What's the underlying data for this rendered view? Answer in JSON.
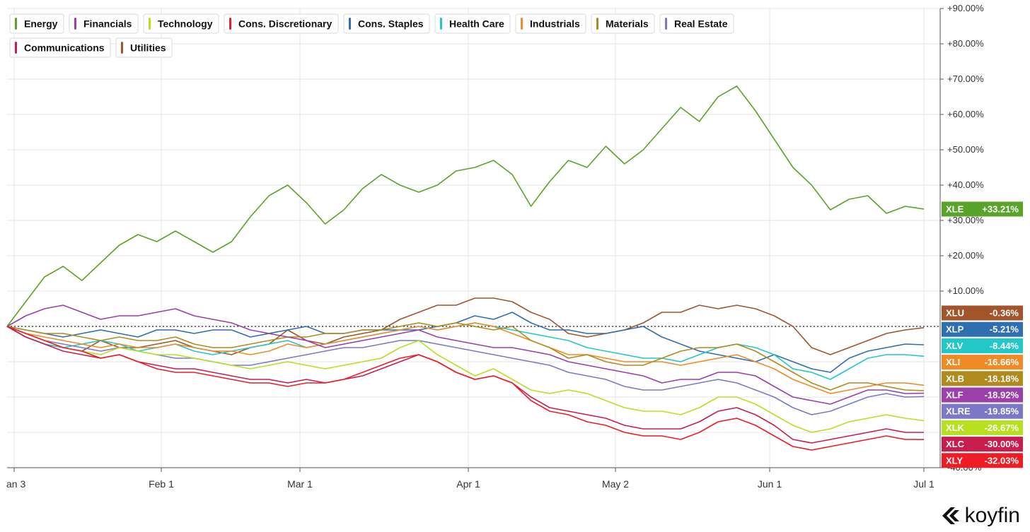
{
  "brand": {
    "name": "koyfin",
    "icon": "koyfin-logo-icon"
  },
  "colors": {
    "grid": "#e6e6e6",
    "axis": "#555555",
    "zeroline": "#222222"
  },
  "chart_data": {
    "type": "line",
    "x_labels": [
      "an 3",
      "Feb 1",
      "Mar 1",
      "Apr 1",
      "May 2",
      "Jun 1",
      "Jul 1"
    ],
    "y_unit": "%",
    "ylim": [
      -40,
      90
    ],
    "y_ticks": [
      "+90.00%",
      "+80.00%",
      "+70.00%",
      "+60.00%",
      "+50.00%",
      "+40.00%",
      "+30.00%",
      "+20.00%",
      "+10.00%",
      "-40.00%"
    ],
    "grid": true,
    "legend_position": "top-left",
    "series": [
      {
        "name": "Energy",
        "ticker": "XLE",
        "final": "+33.21%",
        "color": "#5aa329",
        "values": [
          0,
          7,
          14,
          17,
          13,
          18,
          23,
          26,
          24,
          27,
          24,
          21,
          24,
          31,
          37,
          40,
          35,
          29,
          33,
          39,
          43,
          40,
          38,
          40,
          44,
          45,
          47,
          43,
          34,
          41,
          47,
          45,
          51,
          46,
          50,
          56,
          62,
          58,
          65,
          68,
          61,
          53,
          45,
          40,
          33,
          36,
          37,
          32,
          34,
          33.21
        ]
      },
      {
        "name": "Utilities",
        "ticker": "XLU",
        "final": "-0.36%",
        "color": "#a2552a",
        "values": [
          0,
          -3,
          -5,
          -6,
          -7,
          -4,
          -6,
          -6,
          -5,
          -4,
          -6,
          -7,
          -8,
          -6,
          -5,
          -1,
          -4,
          -5,
          -3,
          -2,
          -1,
          2,
          4,
          6,
          6,
          8,
          8,
          7,
          4,
          2,
          -2,
          -3,
          -2,
          -1,
          1,
          4,
          4,
          6,
          5,
          6,
          5,
          3,
          0,
          -6,
          -8,
          -6,
          -4,
          -2,
          -1,
          -0.36
        ]
      },
      {
        "name": "Cons. Staples",
        "ticker": "XLP",
        "final": "-5.21%",
        "color": "#2f6fb0",
        "values": [
          0,
          -1,
          -2,
          -3,
          -2,
          -1,
          -2,
          -3,
          -1,
          -1,
          -2,
          -1,
          -1,
          -3,
          -2,
          -1,
          0,
          -2,
          -2,
          -1,
          -1,
          -1,
          -1,
          0,
          1,
          3,
          2,
          4,
          1,
          -1,
          -1,
          -2,
          -2,
          -1,
          0,
          -3,
          -5,
          -7,
          -8,
          -9,
          -10,
          -8,
          -10,
          -12,
          -13,
          -9,
          -7,
          -6,
          -5,
          -5.21
        ]
      },
      {
        "name": "Health Care",
        "ticker": "XLV",
        "final": "-8.44%",
        "color": "#22c7c7",
        "values": [
          0,
          -3,
          -5,
          -6,
          -5,
          -4,
          -5,
          -7,
          -6,
          -5,
          -7,
          -8,
          -7,
          -6,
          -5,
          -4,
          -6,
          -5,
          -4,
          -3,
          -2,
          -1,
          0,
          -1,
          0,
          1,
          0,
          -1,
          -2,
          -3,
          -4,
          -6,
          -7,
          -8,
          -9,
          -9,
          -10,
          -8,
          -6,
          -5,
          -6,
          -8,
          -12,
          -13,
          -15,
          -12,
          -9,
          -8,
          -8,
          -8.44
        ]
      },
      {
        "name": "Industrials",
        "ticker": "XLI",
        "final": "-16.66%",
        "color": "#f08a24",
        "values": [
          0,
          -2,
          -3,
          -4,
          -5,
          -6,
          -5,
          -6,
          -6,
          -5,
          -6,
          -7,
          -7,
          -8,
          -7,
          -5,
          -6,
          -5,
          -4,
          -3,
          -2,
          -1,
          0,
          -1,
          0,
          1,
          0,
          -2,
          -4,
          -6,
          -8,
          -8,
          -9,
          -10,
          -10,
          -10,
          -11,
          -10,
          -9,
          -8,
          -10,
          -12,
          -15,
          -17,
          -19,
          -18,
          -17,
          -16,
          -16,
          -16.66
        ]
      },
      {
        "name": "Materials",
        "ticker": "XLB",
        "final": "-18.18%",
        "color": "#b08a1d",
        "values": [
          0,
          -1,
          -2,
          -2,
          -3,
          -4,
          -3,
          -4,
          -4,
          -3,
          -5,
          -6,
          -6,
          -5,
          -4,
          -3,
          -3,
          -2,
          -2,
          -1,
          -1,
          0,
          1,
          0,
          1,
          0,
          -1,
          0,
          -4,
          -6,
          -9,
          -8,
          -10,
          -11,
          -11,
          -9,
          -7,
          -6,
          -6,
          -5,
          -7,
          -10,
          -13,
          -16,
          -18,
          -16,
          -16,
          -17,
          -18,
          -18.18
        ]
      },
      {
        "name": "Financials",
        "ticker": "XLF",
        "final": "-18.92%",
        "color": "#9b3fa9",
        "values": [
          0,
          3,
          5,
          6,
          4,
          2,
          3,
          3,
          4,
          5,
          3,
          2,
          1,
          -1,
          -2,
          -3,
          -4,
          -6,
          -5,
          -4,
          -3,
          -2,
          -1,
          -3,
          -4,
          -5,
          -6,
          -6,
          -7,
          -8,
          -10,
          -11,
          -12,
          -13,
          -14,
          -16,
          -15,
          -15,
          -13,
          -13,
          -14,
          -17,
          -20,
          -21,
          -22,
          -20,
          -18,
          -18,
          -19,
          -18.92
        ]
      },
      {
        "name": "Real Estate",
        "ticker": "XLRE",
        "final": "-19.85%",
        "color": "#7b78c8",
        "values": [
          0,
          -2,
          -4,
          -5,
          -6,
          -7,
          -6,
          -7,
          -8,
          -9,
          -9,
          -10,
          -11,
          -11,
          -10,
          -9,
          -8,
          -7,
          -6,
          -6,
          -5,
          -4,
          -4,
          -5,
          -6,
          -7,
          -8,
          -9,
          -10,
          -11,
          -13,
          -14,
          -15,
          -17,
          -18,
          -18,
          -17,
          -16,
          -15,
          -16,
          -18,
          -20,
          -23,
          -25,
          -24,
          -22,
          -20,
          -19,
          -20,
          -19.85
        ]
      },
      {
        "name": "Technology",
        "ticker": "XLK",
        "final": "-26.67%",
        "color": "#b6e020",
        "values": [
          0,
          -2,
          -4,
          -6,
          -7,
          -8,
          -6,
          -7,
          -8,
          -8,
          -9,
          -10,
          -11,
          -12,
          -11,
          -10,
          -11,
          -12,
          -11,
          -10,
          -9,
          -6,
          -4,
          -8,
          -11,
          -14,
          -12,
          -15,
          -18,
          -19,
          -18,
          -19,
          -21,
          -23,
          -24,
          -24,
          -25,
          -23,
          -20,
          -20,
          -22,
          -25,
          -28,
          -30,
          -29,
          -27,
          -26,
          -25,
          -26,
          -26.67
        ]
      },
      {
        "name": "Communications",
        "ticker": "XLC",
        "final": "-30.00%",
        "color": "#c81e4e",
        "values": [
          0,
          -3,
          -5,
          -7,
          -8,
          -9,
          -8,
          -10,
          -11,
          -12,
          -12,
          -13,
          -14,
          -15,
          -15,
          -16,
          -15,
          -16,
          -15,
          -14,
          -12,
          -10,
          -8,
          -10,
          -13,
          -15,
          -14,
          -16,
          -20,
          -23,
          -24,
          -25,
          -26,
          -28,
          -29,
          -29,
          -29,
          -27,
          -24,
          -23,
          -25,
          -28,
          -32,
          -33,
          -32,
          -31,
          -30,
          -29,
          -30,
          -30
        ]
      },
      {
        "name": "Cons. Discretionary",
        "ticker": "XLY",
        "final": "-32.03%",
        "color": "#ee1c25",
        "values": [
          0,
          -2,
          -4,
          -6,
          -7,
          -9,
          -8,
          -10,
          -12,
          -13,
          -13,
          -14,
          -15,
          -16,
          -16,
          -17,
          -16,
          -16,
          -15,
          -13,
          -11,
          -9,
          -8,
          -10,
          -13,
          -15,
          -14,
          -16,
          -21,
          -24,
          -25,
          -27,
          -28,
          -30,
          -31,
          -31,
          -32,
          -30,
          -27,
          -26,
          -28,
          -31,
          -34,
          -35,
          -34,
          -33,
          -32,
          -31,
          -32,
          -32.03
        ]
      }
    ]
  }
}
